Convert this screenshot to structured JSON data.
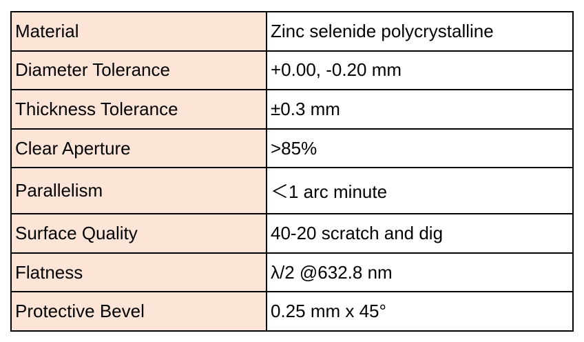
{
  "rows": [
    {
      "label": "Material",
      "value": "Zinc selenide polycrystalline"
    },
    {
      "label": "Diameter Tolerance",
      "value": "+0.00, -0.20 mm"
    },
    {
      "label": "Thickness Tolerance",
      "value": "±0.3 mm"
    },
    {
      "label": "Clear Aperture",
      "value": ">85%"
    },
    {
      "label": "Parallelism",
      "value": "＜1 arc minute"
    },
    {
      "label": "Surface Quality",
      "value": "40-20 scratch and dig"
    },
    {
      "label": "Flatness",
      "value": "λ/2 @632.8 nm"
    },
    {
      "label": "Protective Bevel",
      "value": "0.25 mm x 45°"
    }
  ],
  "colors": {
    "label_background": "#fce4d6",
    "value_background": "#ffffff",
    "border": "#000000"
  }
}
